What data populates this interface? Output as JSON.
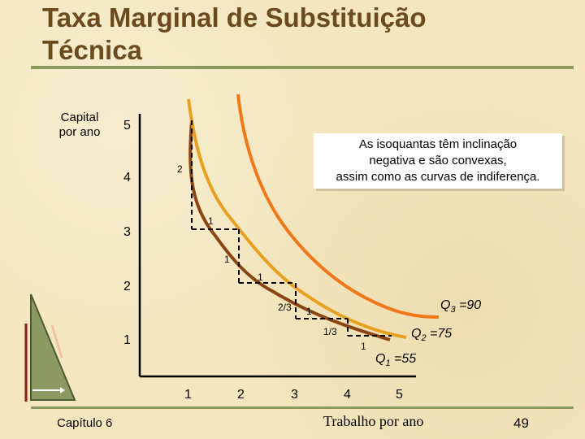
{
  "title": {
    "line1": "Taxa Marginal de Substituição",
    "line2": "Técnica"
  },
  "axes": {
    "y_label_line1": "Capital",
    "y_label_line2": "por ano",
    "x_label": "Trabalho por ano",
    "y_ticks": [
      "5",
      "4",
      "3",
      "2",
      "1"
    ],
    "x_ticks": [
      "1",
      "2",
      "3",
      "4",
      "5"
    ]
  },
  "callout": {
    "line1": "As isoquantas têm inclinação",
    "line2": "negativa e são convexas,",
    "line3": "assim como as curvas de indiferença."
  },
  "steps": {
    "dk1": "2",
    "dl1": "1",
    "dk2": "1",
    "dl2": "1",
    "dk3": "2/3",
    "dl3": "1",
    "dk4": "1/3",
    "dl4": "1"
  },
  "isoquants": {
    "q1_label": "Q",
    "q1_sub": "1",
    "q1_value": " =55",
    "q2_label": "Q",
    "q2_sub": "2",
    "q2_value": " =75",
    "q3_label": "Q",
    "q3_sub": "3",
    "q3_value": " =90"
  },
  "colors": {
    "q1": "#8b4513",
    "q2": "#e8a020",
    "q3": "#f07818"
  },
  "footer": {
    "chapter": "Capítulo 6",
    "page": "49"
  }
}
